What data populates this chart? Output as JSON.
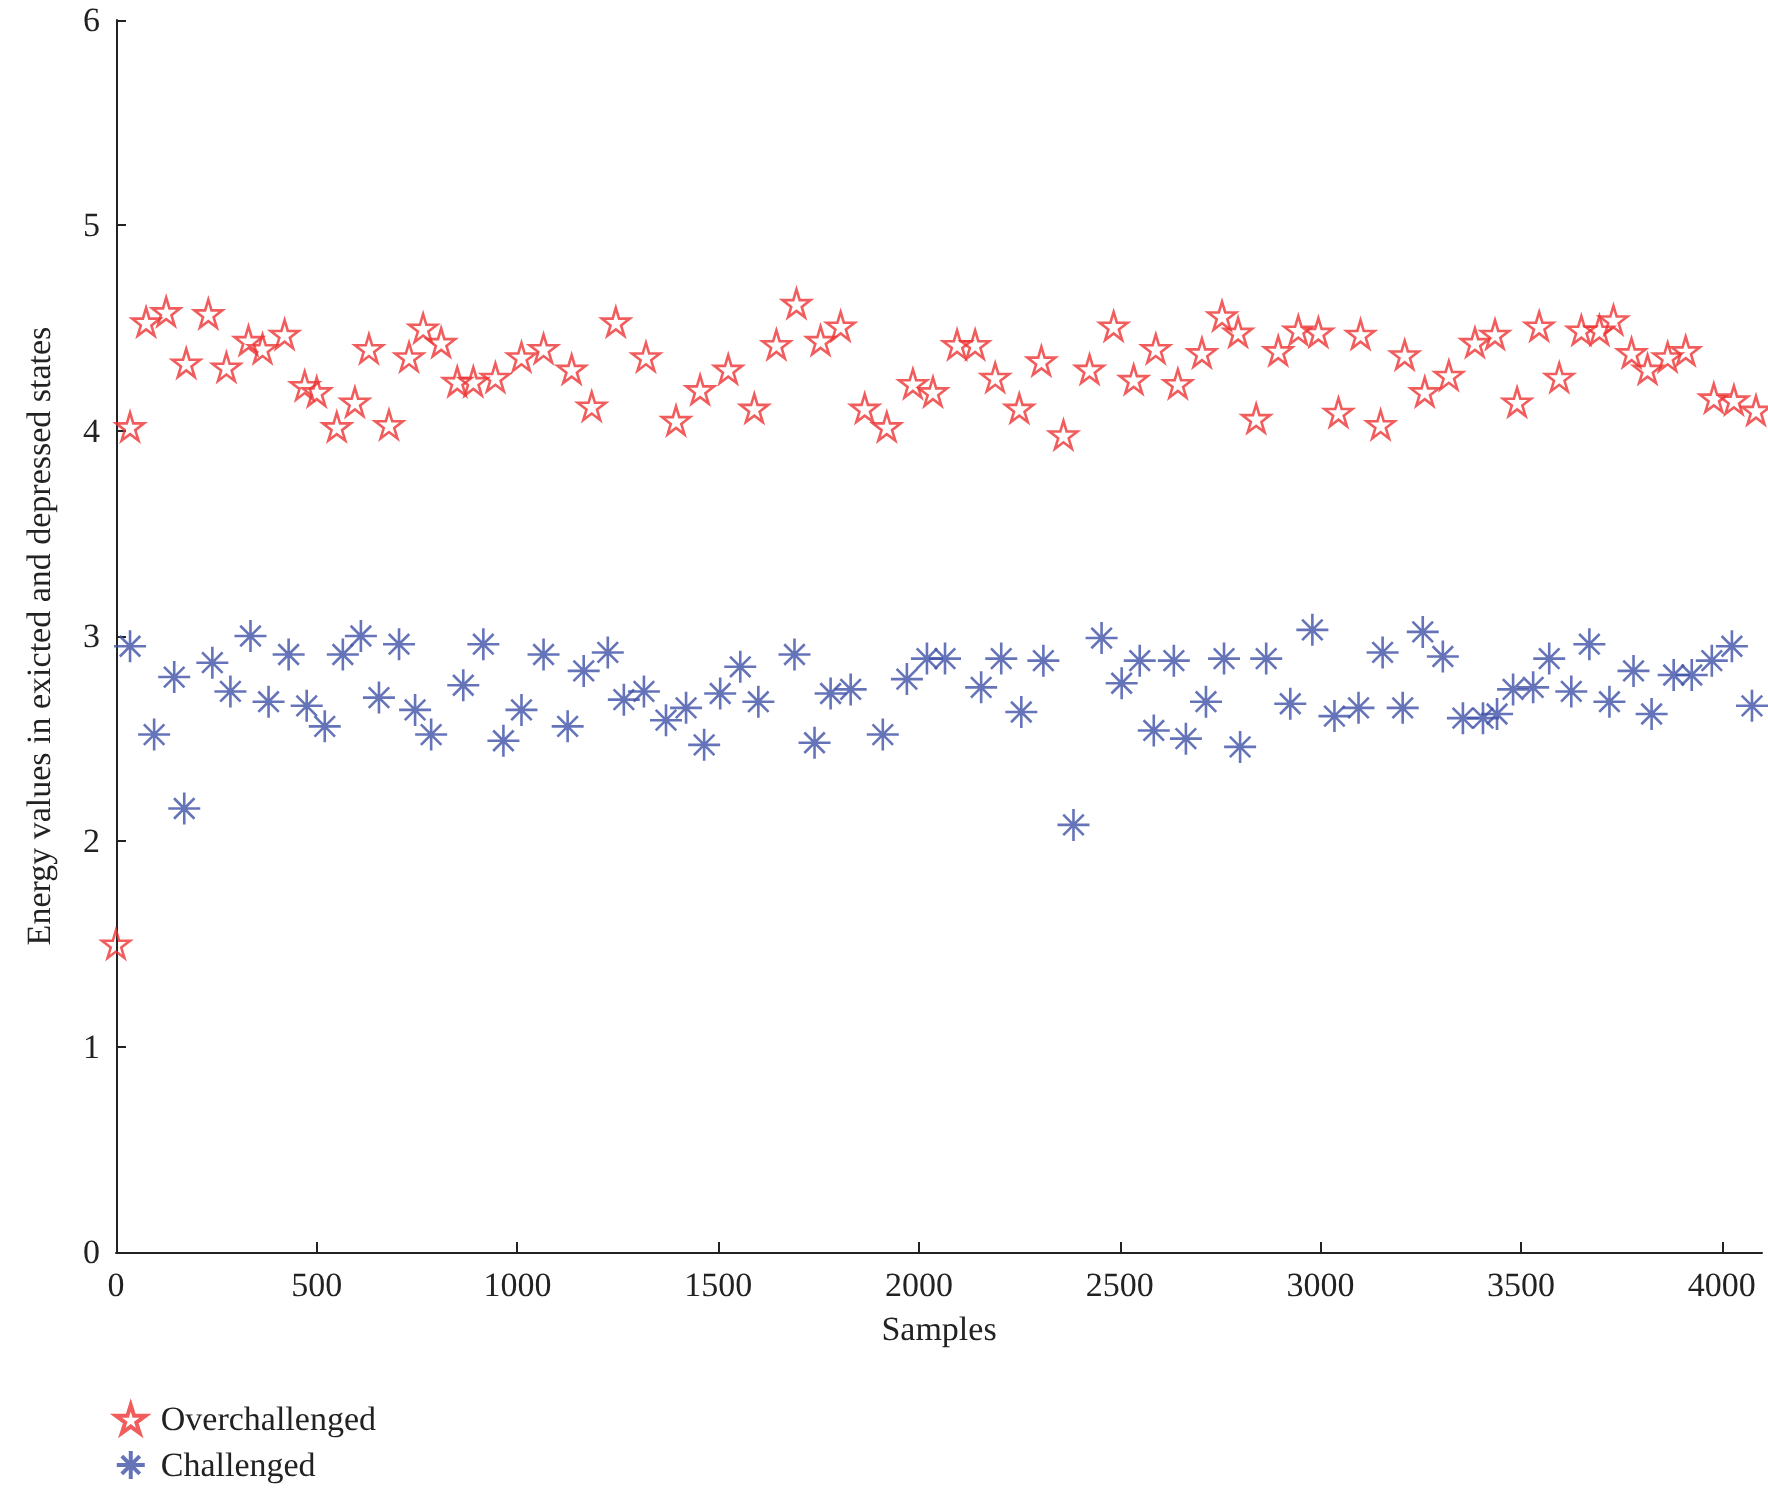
{
  "chart_data": {
    "type": "scatter",
    "xlabel": "Samples",
    "ylabel": "Energy values in exicted and depressed states",
    "xlim": [
      0,
      4100
    ],
    "xticks": [
      0,
      500,
      1000,
      1500,
      2000,
      2500,
      3000,
      3500,
      4000
    ],
    "ylim": [
      0,
      6
    ],
    "yticks": [
      0,
      1,
      2,
      3,
      4,
      5,
      6
    ],
    "grid": false,
    "legend": "bottom left",
    "series": [
      {
        "name": "Overchallenged",
        "color": "#ee3333",
        "marker": "star",
        "x": [
          0,
          35,
          75,
          125,
          175,
          230,
          275,
          330,
          365,
          420,
          470,
          500,
          550,
          595,
          630,
          680,
          730,
          765,
          810,
          850,
          890,
          945,
          1010,
          1065,
          1135,
          1185,
          1245,
          1320,
          1395,
          1455,
          1525,
          1590,
          1645,
          1695,
          1755,
          1805,
          1865,
          1920,
          1985,
          2035,
          2095,
          2140,
          2190,
          2250,
          2305,
          2360,
          2425,
          2485,
          2535,
          2590,
          2645,
          2705,
          2755,
          2795,
          2840,
          2895,
          2945,
          2995,
          3045,
          3100,
          3150,
          3210,
          3260,
          3320,
          3385,
          3435,
          3490,
          3545,
          3595,
          3650,
          3695,
          3730,
          3775,
          3815,
          3865,
          3910,
          3980,
          4030,
          4085
        ],
        "values": [
          1.5,
          4.02,
          4.53,
          4.58,
          4.33,
          4.57,
          4.31,
          4.44,
          4.4,
          4.47,
          4.22,
          4.19,
          4.02,
          4.14,
          4.4,
          4.03,
          4.36,
          4.5,
          4.43,
          4.24,
          4.24,
          4.26,
          4.36,
          4.4,
          4.3,
          4.12,
          4.53,
          4.36,
          4.05,
          4.2,
          4.3,
          4.11,
          4.42,
          4.62,
          4.44,
          4.51,
          4.11,
          4.02,
          4.23,
          4.19,
          4.42,
          4.42,
          4.26,
          4.11,
          4.34,
          3.98,
          4.3,
          4.51,
          4.25,
          4.4,
          4.23,
          4.38,
          4.56,
          4.48,
          4.06,
          4.39,
          4.49,
          4.48,
          4.09,
          4.47,
          4.03,
          4.37,
          4.19,
          4.27,
          4.43,
          4.47,
          4.14,
          4.51,
          4.26,
          4.49,
          4.49,
          4.54,
          4.38,
          4.3,
          4.36,
          4.39,
          4.16,
          4.15,
          4.1
        ]
      },
      {
        "name": "Challenged",
        "color": "#3f51a8",
        "marker": "cross",
        "x": [
          35,
          95,
          145,
          170,
          240,
          285,
          335,
          380,
          430,
          475,
          520,
          565,
          610,
          655,
          705,
          745,
          785,
          865,
          915,
          965,
          1010,
          1065,
          1125,
          1165,
          1225,
          1265,
          1315,
          1370,
          1420,
          1465,
          1505,
          1555,
          1600,
          1690,
          1740,
          1780,
          1830,
          1910,
          1970,
          2020,
          2065,
          2155,
          2205,
          2255,
          2310,
          2385,
          2455,
          2505,
          2550,
          2585,
          2635,
          2665,
          2715,
          2760,
          2800,
          2865,
          2925,
          2980,
          3035,
          3095,
          3155,
          3205,
          3255,
          3305,
          3355,
          3405,
          3440,
          3480,
          3530,
          3570,
          3625,
          3670,
          3720,
          3780,
          3825,
          3880,
          3925,
          3975,
          4025,
          4075
        ],
        "values": [
          2.95,
          2.52,
          2.8,
          2.16,
          2.87,
          2.73,
          3.0,
          2.68,
          2.91,
          2.66,
          2.56,
          2.91,
          3.0,
          2.7,
          2.96,
          2.64,
          2.52,
          2.76,
          2.96,
          2.49,
          2.64,
          2.91,
          2.56,
          2.83,
          2.92,
          2.69,
          2.73,
          2.59,
          2.65,
          2.47,
          2.72,
          2.85,
          2.68,
          2.91,
          2.48,
          2.72,
          2.74,
          2.52,
          2.79,
          2.89,
          2.89,
          2.75,
          2.89,
          2.63,
          2.88,
          2.08,
          2.99,
          2.77,
          2.88,
          2.54,
          2.88,
          2.5,
          2.68,
          2.89,
          2.46,
          2.89,
          2.67,
          3.03,
          2.61,
          2.65,
          2.92,
          2.65,
          3.02,
          2.9,
          2.6,
          2.6,
          2.62,
          2.74,
          2.75,
          2.89,
          2.73,
          2.96,
          2.68,
          2.83,
          2.62,
          2.81,
          2.81,
          2.88,
          2.95,
          2.66
        ]
      }
    ]
  }
}
